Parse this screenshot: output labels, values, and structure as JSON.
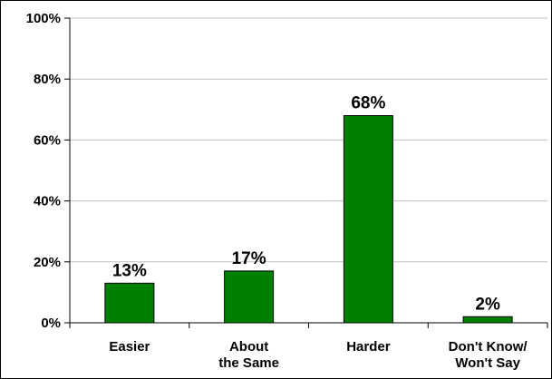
{
  "chart_data": {
    "type": "bar",
    "categories": [
      [
        "Easier"
      ],
      [
        "About",
        "the Same"
      ],
      [
        "Harder"
      ],
      [
        "Don't Know/",
        "Won't Say"
      ]
    ],
    "values": [
      13,
      17,
      68,
      2
    ],
    "data_labels": [
      "13%",
      "17%",
      "68%",
      "2%"
    ],
    "y_ticks": [
      0,
      20,
      40,
      60,
      80,
      100
    ],
    "y_tick_labels": [
      "0%",
      "20%",
      "40%",
      "60%",
      "80%",
      "100%"
    ],
    "ylim": [
      0,
      100
    ],
    "grid": true,
    "legend": false,
    "bar_color": "#008000",
    "grid_color": "#c0c0c0"
  }
}
